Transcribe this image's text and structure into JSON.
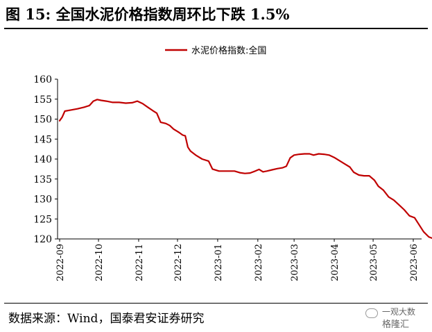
{
  "title": "图 15: 全国水泥价格指数周环比下跌 1.5%",
  "source": "数据来源：Wind，国泰君安证券研究",
  "watermark": {
    "line1": "一观大数",
    "line2": "格隆汇"
  },
  "colors": {
    "series": "#c00000",
    "axis": "#000000"
  },
  "chart_data": {
    "type": "line",
    "legend": {
      "position": "top-center",
      "entries": [
        "水泥价格指数:全国"
      ]
    },
    "ylim": [
      120,
      160
    ],
    "yticks": [
      120,
      125,
      130,
      135,
      140,
      145,
      150,
      155,
      160
    ],
    "xticks": [
      "2022-09",
      "2022-10",
      "2022-11",
      "2022-12",
      "2023-01",
      "2023-02",
      "2023-03",
      "2023-04",
      "2023-05",
      "2023-06"
    ],
    "grid": false,
    "series": [
      {
        "name": "水泥价格指数:全国",
        "color": "#c00000",
        "points": [
          [
            "2022-09-01",
            149.6
          ],
          [
            "2022-09-03",
            150.5
          ],
          [
            "2022-09-05",
            152.0
          ],
          [
            "2022-09-10",
            152.3
          ],
          [
            "2022-09-15",
            152.6
          ],
          [
            "2022-09-20",
            153.0
          ],
          [
            "2022-09-24",
            153.4
          ],
          [
            "2022-09-27",
            154.5
          ],
          [
            "2022-09-30",
            154.9
          ],
          [
            "2022-10-03",
            154.7
          ],
          [
            "2022-10-07",
            154.5
          ],
          [
            "2022-10-12",
            154.2
          ],
          [
            "2022-10-17",
            154.2
          ],
          [
            "2022-10-22",
            154.0
          ],
          [
            "2022-10-27",
            154.1
          ],
          [
            "2022-10-31",
            154.5
          ],
          [
            "2022-11-04",
            153.9
          ],
          [
            "2022-11-08",
            153.0
          ],
          [
            "2022-11-12",
            152.1
          ],
          [
            "2022-11-15",
            151.5
          ],
          [
            "2022-11-18",
            149.2
          ],
          [
            "2022-11-22",
            148.9
          ],
          [
            "2022-11-25",
            148.4
          ],
          [
            "2022-11-28",
            147.5
          ],
          [
            "2022-12-02",
            146.7
          ],
          [
            "2022-12-05",
            146.0
          ],
          [
            "2022-12-07",
            145.8
          ],
          [
            "2022-12-09",
            143.0
          ],
          [
            "2022-12-11",
            142.0
          ],
          [
            "2022-12-15",
            141.0
          ],
          [
            "2022-12-20",
            140.0
          ],
          [
            "2022-12-25",
            139.5
          ],
          [
            "2022-12-28",
            137.5
          ],
          [
            "2023-01-02",
            137.0
          ],
          [
            "2023-01-08",
            137.0
          ],
          [
            "2023-01-14",
            137.0
          ],
          [
            "2023-01-18",
            136.6
          ],
          [
            "2023-01-22",
            136.4
          ],
          [
            "2023-01-26",
            136.5
          ],
          [
            "2023-01-30",
            137.0
          ],
          [
            "2023-02-02",
            137.4
          ],
          [
            "2023-02-05",
            136.8
          ],
          [
            "2023-02-08",
            137.0
          ],
          [
            "2023-02-12",
            137.3
          ],
          [
            "2023-02-16",
            137.6
          ],
          [
            "2023-02-20",
            137.8
          ],
          [
            "2023-02-23",
            138.2
          ],
          [
            "2023-02-26",
            140.3
          ],
          [
            "2023-03-01",
            141.0
          ],
          [
            "2023-03-05",
            141.2
          ],
          [
            "2023-03-09",
            141.3
          ],
          [
            "2023-03-13",
            141.3
          ],
          [
            "2023-03-16",
            141.0
          ],
          [
            "2023-03-20",
            141.3
          ],
          [
            "2023-03-24",
            141.2
          ],
          [
            "2023-03-28",
            141.0
          ],
          [
            "2023-04-01",
            140.4
          ],
          [
            "2023-04-05",
            139.6
          ],
          [
            "2023-04-09",
            138.8
          ],
          [
            "2023-04-13",
            138.0
          ],
          [
            "2023-04-16",
            136.7
          ],
          [
            "2023-04-20",
            136.0
          ],
          [
            "2023-04-24",
            135.8
          ],
          [
            "2023-04-28",
            135.8
          ],
          [
            "2023-05-02",
            134.7
          ],
          [
            "2023-05-05",
            133.2
          ],
          [
            "2023-05-09",
            132.2
          ],
          [
            "2023-05-13",
            130.5
          ],
          [
            "2023-05-17",
            129.7
          ],
          [
            "2023-05-21",
            128.5
          ],
          [
            "2023-05-25",
            127.3
          ],
          [
            "2023-05-29",
            125.8
          ],
          [
            "2023-06-02",
            125.3
          ],
          [
            "2023-06-05",
            123.8
          ],
          [
            "2023-06-09",
            121.8
          ],
          [
            "2023-06-13",
            120.5
          ],
          [
            "2023-06-17",
            120.0
          ]
        ]
      }
    ]
  }
}
